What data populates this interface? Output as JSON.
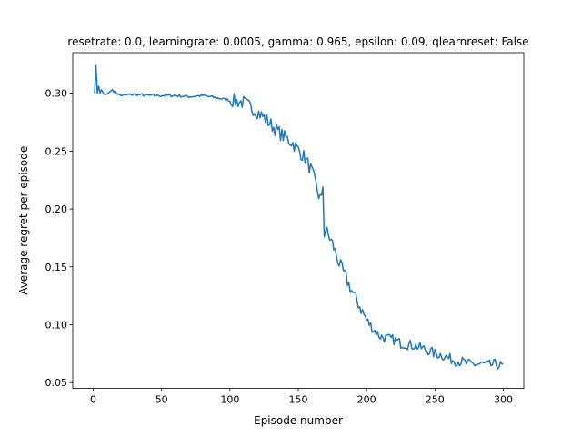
{
  "chart_data": {
    "type": "line",
    "title": "resetrate: 0.0, learningrate: 0.0005, gamma: 0.965, epsilon: 0.09, qlearnreset: False",
    "xlabel": "Episode number",
    "ylabel": "Average regret per episode",
    "xlim": [
      -15,
      315
    ],
    "ylim": [
      0.045,
      0.335
    ],
    "xticks": [
      0,
      50,
      100,
      150,
      200,
      250,
      300
    ],
    "xtick_labels": [
      "0",
      "50",
      "100",
      "150",
      "200",
      "250",
      "300"
    ],
    "yticks": [
      0.05,
      0.1,
      0.15,
      0.2,
      0.25,
      0.3
    ],
    "ytick_labels": [
      "0.05",
      "0.10",
      "0.15",
      "0.20",
      "0.25",
      "0.30"
    ],
    "grid": false,
    "line_color": "#1f77b4",
    "anchors": {
      "x": [
        1,
        2,
        3,
        4,
        5,
        6,
        8,
        10,
        14,
        15,
        20,
        30,
        40,
        50,
        60,
        70,
        80,
        90,
        100,
        105,
        110,
        115,
        120,
        125,
        130,
        135,
        140,
        145,
        150,
        155,
        160,
        165,
        168,
        170,
        175,
        180,
        185,
        190,
        195,
        200,
        205,
        210,
        215,
        220,
        225,
        230,
        235,
        240,
        245,
        250,
        255,
        260,
        265,
        270,
        275,
        280,
        285,
        290,
        295,
        300
      ],
      "y": [
        0.3,
        0.324,
        0.3,
        0.306,
        0.3,
        0.303,
        0.299,
        0.299,
        0.303,
        0.302,
        0.298,
        0.299,
        0.298,
        0.298,
        0.298,
        0.297,
        0.298,
        0.296,
        0.294,
        0.293,
        0.292,
        0.288,
        0.284,
        0.279,
        0.273,
        0.267,
        0.262,
        0.258,
        0.251,
        0.244,
        0.232,
        0.212,
        0.205,
        0.182,
        0.17,
        0.153,
        0.14,
        0.127,
        0.116,
        0.104,
        0.096,
        0.09,
        0.088,
        0.087,
        0.084,
        0.083,
        0.082,
        0.08,
        0.078,
        0.075,
        0.074,
        0.071,
        0.069,
        0.068,
        0.066,
        0.066,
        0.066,
        0.065,
        0.066,
        0.064
      ]
    },
    "series_length": 300
  }
}
